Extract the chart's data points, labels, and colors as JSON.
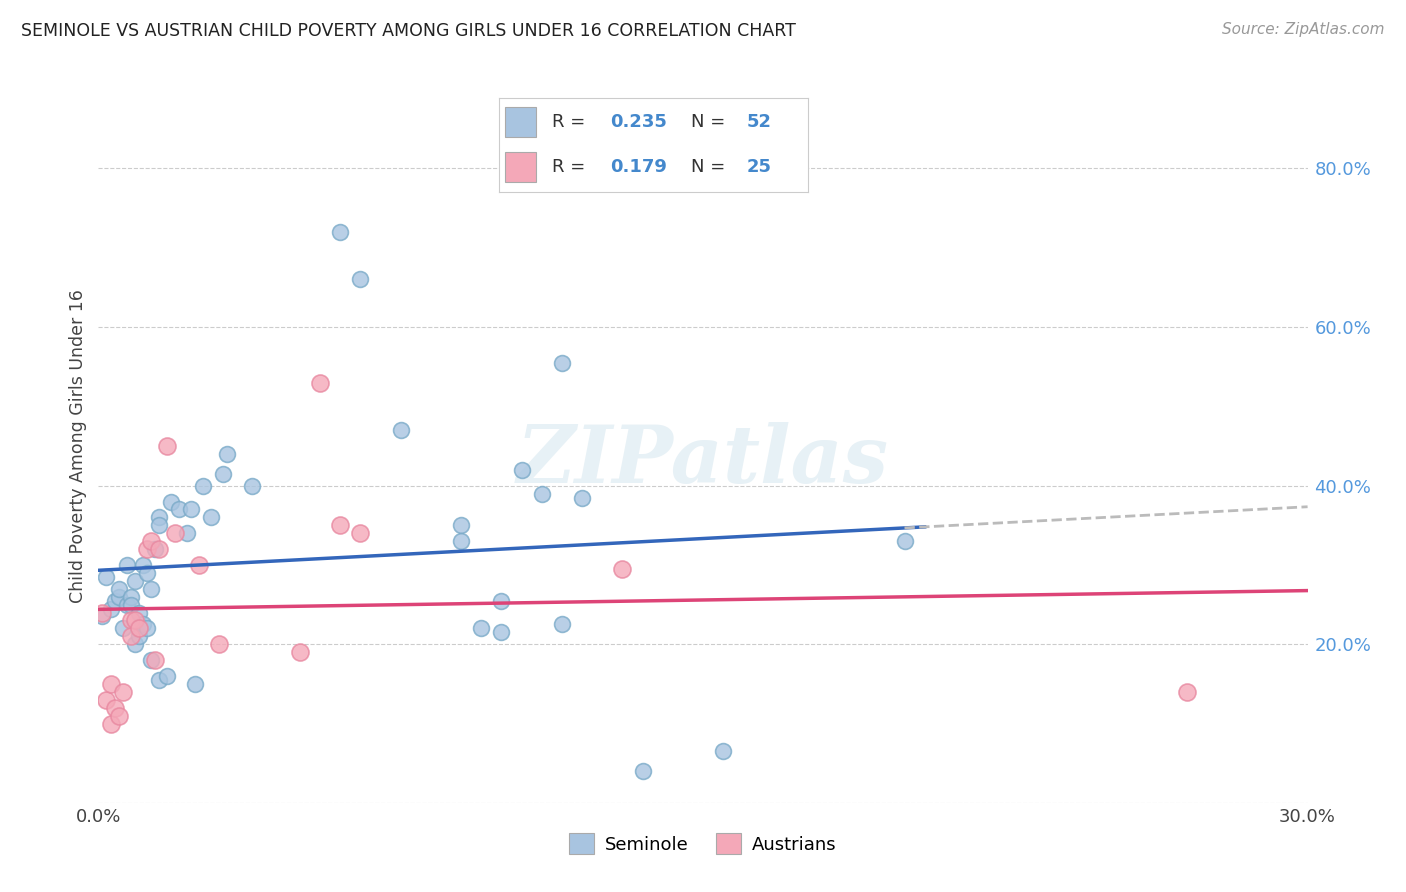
{
  "title": "SEMINOLE VS AUSTRIAN CHILD POVERTY AMONG GIRLS UNDER 16 CORRELATION CHART",
  "source": "Source: ZipAtlas.com",
  "ylabel": "Child Poverty Among Girls Under 16",
  "xlim": [
    0.0,
    0.3
  ],
  "ylim": [
    0.0,
    0.9
  ],
  "xticks": [
    0.0,
    0.05,
    0.1,
    0.15,
    0.2,
    0.25,
    0.3
  ],
  "yticks_right": [
    0.0,
    0.2,
    0.4,
    0.6,
    0.8
  ],
  "yticklabels_right": [
    "",
    "20.0%",
    "40.0%",
    "60.0%",
    "80.0%"
  ],
  "seminole_color": "#a8c4e0",
  "seminole_edge_color": "#7aaac8",
  "austrian_color": "#f4a8b8",
  "austrian_edge_color": "#e888a0",
  "seminole_line_color": "#3366bb",
  "austrian_line_color": "#dd4477",
  "trend_dash_color": "#bbbbbb",
  "watermark_text": "ZIPatlas",
  "legend_R1_label": "R = ",
  "legend_R1_val": "0.235",
  "legend_N1_label": "N = ",
  "legend_N1_val": "52",
  "legend_R2_label": "R = ",
  "legend_R2_val": "0.179",
  "legend_N2_label": "N = ",
  "legend_N2_val": "25",
  "legend_color_blue": "#4488cc",
  "legend_color_pink": "#4488cc",
  "bottom_legend_seminole": "Seminole",
  "bottom_legend_austrian": "Austrians",
  "seminole_x": [
    0.001,
    0.002,
    0.003,
    0.004,
    0.005,
    0.005,
    0.006,
    0.007,
    0.007,
    0.008,
    0.008,
    0.009,
    0.009,
    0.01,
    0.01,
    0.011,
    0.011,
    0.012,
    0.012,
    0.013,
    0.013,
    0.014,
    0.015,
    0.015,
    0.015,
    0.017,
    0.018,
    0.02,
    0.022,
    0.023,
    0.024,
    0.026,
    0.028,
    0.031,
    0.032,
    0.038,
    0.06,
    0.065,
    0.075,
    0.09,
    0.09,
    0.095,
    0.1,
    0.1,
    0.105,
    0.11,
    0.115,
    0.115,
    0.12,
    0.135,
    0.155,
    0.2
  ],
  "seminole_y": [
    0.235,
    0.285,
    0.245,
    0.255,
    0.26,
    0.27,
    0.22,
    0.25,
    0.3,
    0.26,
    0.25,
    0.28,
    0.2,
    0.24,
    0.21,
    0.3,
    0.225,
    0.22,
    0.29,
    0.18,
    0.27,
    0.32,
    0.36,
    0.35,
    0.155,
    0.16,
    0.38,
    0.37,
    0.34,
    0.37,
    0.15,
    0.4,
    0.36,
    0.415,
    0.44,
    0.4,
    0.72,
    0.66,
    0.47,
    0.35,
    0.33,
    0.22,
    0.255,
    0.215,
    0.42,
    0.39,
    0.555,
    0.225,
    0.385,
    0.04,
    0.065,
    0.33
  ],
  "austrian_x": [
    0.001,
    0.002,
    0.003,
    0.003,
    0.004,
    0.005,
    0.006,
    0.008,
    0.008,
    0.009,
    0.01,
    0.012,
    0.013,
    0.014,
    0.015,
    0.017,
    0.019,
    0.025,
    0.03,
    0.05,
    0.055,
    0.06,
    0.065,
    0.13,
    0.27
  ],
  "austrian_y": [
    0.24,
    0.13,
    0.1,
    0.15,
    0.12,
    0.11,
    0.14,
    0.23,
    0.21,
    0.23,
    0.22,
    0.32,
    0.33,
    0.18,
    0.32,
    0.45,
    0.34,
    0.3,
    0.2,
    0.19,
    0.53,
    0.35,
    0.34,
    0.295,
    0.14
  ]
}
